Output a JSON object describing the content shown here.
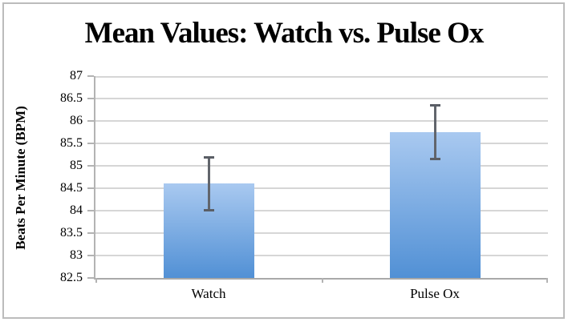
{
  "chart_data": {
    "type": "bar",
    "title": "Mean Values: Watch vs. Pulse Ox",
    "ylabel": "Beats Per Minute (BPM)",
    "xlabel": "",
    "categories": [
      "Watch",
      "Pulse Ox"
    ],
    "values": [
      84.6,
      85.75
    ],
    "error_bars": [
      0.6,
      0.6
    ],
    "ylim": [
      82.5,
      87
    ],
    "ytick_step": 0.5,
    "ytick_labels": [
      "87",
      "86.5",
      "86",
      "85.5",
      "85",
      "84.5",
      "84",
      "83.5",
      "83",
      "82.5"
    ],
    "grid": true,
    "legend": false,
    "colors": {
      "bar_gradient_top": "#a9c9f0",
      "bar_gradient_bottom": "#5190d5",
      "error_bar": "#61656c",
      "gridline": "#d6d6d6",
      "axis_line": "#a9a9a9",
      "frame_border": "#bcbcbc",
      "text": "#000000",
      "background": "#ffffff"
    }
  }
}
